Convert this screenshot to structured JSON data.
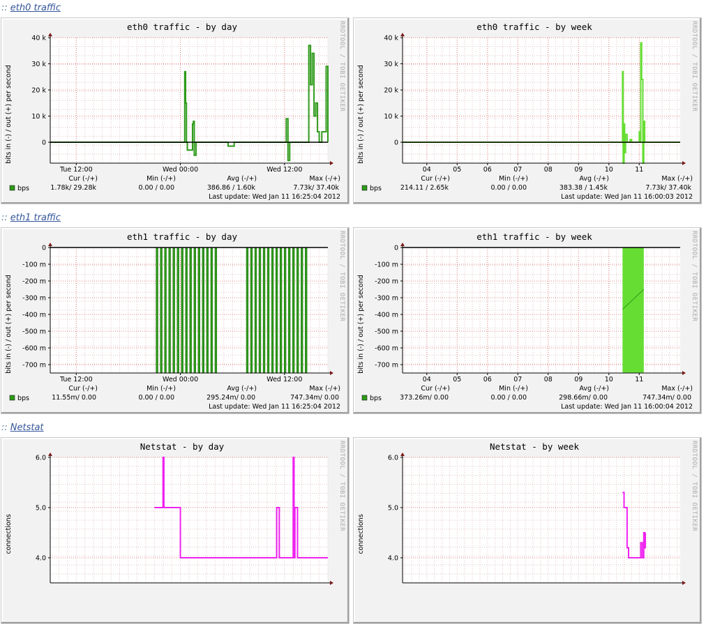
{
  "sections": [
    {
      "prefix": "::",
      "label": "eth0 traffic"
    },
    {
      "prefix": "::",
      "label": "eth1 traffic"
    },
    {
      "prefix": "::",
      "label": "Netstat"
    }
  ],
  "watermark": "RRDTOOL / TOBI OETIKER",
  "chart_data": [
    {
      "type": "line",
      "title": "eth0 traffic - by day",
      "ylabel": "bits in (-) / out (+) per second",
      "ylim": [
        -8000,
        40000
      ],
      "yticks": [
        {
          "v": 40000,
          "label": "40 k"
        },
        {
          "v": 30000,
          "label": "30 k"
        },
        {
          "v": 20000,
          "label": "20 k"
        },
        {
          "v": 10000,
          "label": "10 k"
        },
        {
          "v": 0,
          "label": "0"
        }
      ],
      "xlim": [
        0,
        32
      ],
      "xticks": [
        {
          "v": 3,
          "label": "Tue 12:00"
        },
        {
          "v": 15,
          "label": "Wed 00:00"
        },
        {
          "v": 27,
          "label": "Wed 12:00"
        }
      ],
      "fill": false,
      "color": "#2e9a1a",
      "series": [
        {
          "x": [
            0,
            15.5,
            15.6,
            15.7,
            15.8,
            16.4,
            16.5,
            16.6,
            16.8,
            17.5,
            18.5,
            19.5,
            20.5,
            21.2,
            22,
            23,
            24,
            25,
            25.5,
            25.8,
            27.2,
            27.4,
            27.6,
            28,
            29.8,
            30,
            30.2,
            30.4,
            30.6,
            30.8,
            31,
            31.3,
            31.8,
            32
          ],
          "y": [
            0,
            27000,
            15000,
            0,
            -3000,
            7000,
            8000,
            -5000,
            0,
            0,
            0,
            0,
            -1500,
            0,
            0,
            0,
            0,
            0,
            0,
            0,
            9000,
            -7000,
            0,
            0,
            37000,
            22000,
            34000,
            10000,
            15000,
            4000,
            0,
            4000,
            29000,
            0
          ]
        }
      ],
      "legend": [
        {
          "name": "bps",
          "color": "#2e9a1a"
        }
      ],
      "stats_header": [
        "Cur (-/+)",
        "Min (-/+)",
        "Avg (-/+)",
        "Max (-/+)"
      ],
      "stats": [
        "1.78k/    29.28k",
        "0.00 /     0.00",
        "386.86 /    1.60k",
        "7.73k/    37.40k"
      ],
      "last_update": "Last update: Wed Jan 11 16:25:04 2012"
    },
    {
      "type": "line",
      "title": "eth0 traffic - by week",
      "ylabel": "bits in (-) / out (+) per second",
      "ylim": [
        -8000,
        40000
      ],
      "yticks": [
        {
          "v": 40000,
          "label": "40 k"
        },
        {
          "v": 30000,
          "label": "30 k"
        },
        {
          "v": 20000,
          "label": "20 k"
        },
        {
          "v": 10000,
          "label": "10 k"
        },
        {
          "v": 0,
          "label": "0"
        }
      ],
      "xlim": [
        2.2,
        11.35
      ],
      "xticks": [
        {
          "v": 3,
          "label": "04"
        },
        {
          "v": 4,
          "label": "05"
        },
        {
          "v": 5,
          "label": "06"
        },
        {
          "v": 6,
          "label": "07"
        },
        {
          "v": 7,
          "label": "08"
        },
        {
          "v": 8,
          "label": "09"
        },
        {
          "v": 9,
          "label": "10"
        },
        {
          "v": 10,
          "label": "11"
        }
      ],
      "fill": false,
      "color": "#66dd33",
      "series": [
        {
          "x": [
            2.2,
            9.45,
            9.47,
            9.5,
            9.52,
            9.55,
            9.6,
            9.7,
            9.75,
            9.8,
            9.85,
            9.9,
            9.95,
            10.0,
            10.02,
            10.05,
            10.08,
            10.12,
            10.15,
            10.18,
            11.35
          ],
          "y": [
            0,
            27000,
            -8000,
            7000,
            -4000,
            3000,
            0,
            1000,
            0,
            0,
            0,
            0,
            0,
            4000,
            0,
            38000,
            24000,
            -8000,
            8000,
            0,
            0
          ]
        }
      ],
      "legend": [
        {
          "name": "bps",
          "color": "#2e9a1a"
        }
      ],
      "stats_header": [
        "Cur (-/+)",
        "Min (-/+)",
        "Avg (-/+)",
        "Max (-/+)"
      ],
      "stats": [
        "214.11 /    2.65k",
        "0.00 /     0.00",
        "383.38 /    1.45k",
        "7.73k/    37.40k"
      ],
      "last_update": "Last update: Wed Jan 11 16:00:03 2012"
    },
    {
      "type": "area",
      "title": "eth1 traffic - by day",
      "ylabel": "bits in (-) / out (+) per second",
      "ylim": [
        -750,
        0
      ],
      "yticks": [
        {
          "v": 0,
          "label": "0"
        },
        {
          "v": -100,
          "label": "-100 m"
        },
        {
          "v": -200,
          "label": "-200 m"
        },
        {
          "v": -300,
          "label": "-300 m"
        },
        {
          "v": -400,
          "label": "-400 m"
        },
        {
          "v": -500,
          "label": "-500 m"
        },
        {
          "v": -600,
          "label": "-600 m"
        },
        {
          "v": -700,
          "label": "-700 m"
        }
      ],
      "xlim": [
        0,
        32
      ],
      "xticks": [
        {
          "v": 3,
          "label": "Tue 12:00"
        },
        {
          "v": 15,
          "label": "Wed 00:00"
        },
        {
          "v": 27,
          "label": "Wed 12:00"
        }
      ],
      "fill": true,
      "color": "#2e9a1a",
      "bands": [
        [
          12.2,
          19.2
        ],
        [
          22.6,
          29.8
        ]
      ],
      "band_min": -747.34,
      "legend": [
        {
          "name": "bps",
          "color": "#2e9a1a"
        }
      ],
      "stats_header": [
        "Cur (-/+)",
        "Min (-/+)",
        "Avg (-/+)",
        "Max (-/+)"
      ],
      "stats": [
        "11.55m/     0.00",
        "0.00 /     0.00",
        "295.24m/     0.00",
        "747.34m/     0.00"
      ],
      "last_update": "Last update: Wed Jan 11 16:25:04 2012"
    },
    {
      "type": "area",
      "title": "eth1 traffic - by week",
      "ylabel": "bits in (-) / out (+) per second",
      "ylim": [
        -750,
        0
      ],
      "yticks": [
        {
          "v": 0,
          "label": "0"
        },
        {
          "v": -100,
          "label": "-100 m"
        },
        {
          "v": -200,
          "label": "-200 m"
        },
        {
          "v": -300,
          "label": "-300 m"
        },
        {
          "v": -400,
          "label": "-400 m"
        },
        {
          "v": -500,
          "label": "-500 m"
        },
        {
          "v": -600,
          "label": "-600 m"
        },
        {
          "v": -700,
          "label": "-700 m"
        }
      ],
      "xlim": [
        2.2,
        11.35
      ],
      "xticks": [
        {
          "v": 3,
          "label": "04"
        },
        {
          "v": 4,
          "label": "05"
        },
        {
          "v": 5,
          "label": "06"
        },
        {
          "v": 6,
          "label": "07"
        },
        {
          "v": 7,
          "label": "08"
        },
        {
          "v": 8,
          "label": "09"
        },
        {
          "v": 9,
          "label": "10"
        },
        {
          "v": 10,
          "label": "11"
        }
      ],
      "fill": true,
      "color": "#66dd33",
      "bands": [
        [
          9.45,
          10.15
        ]
      ],
      "band_min": -747.34,
      "line": {
        "x": [
          9.45,
          10.15
        ],
        "y": [
          -370,
          -250
        ]
      },
      "legend": [
        {
          "name": "bps",
          "color": "#2e9a1a"
        }
      ],
      "stats_header": [
        "Cur (-/+)",
        "Min (-/+)",
        "Avg (-/+)",
        "Max (-/+)"
      ],
      "stats": [
        "373.26m/     0.00",
        "0.00 /     0.00",
        "298.66m/     0.00",
        "747.34m/     0.00"
      ],
      "last_update": "Last update: Wed Jan 11 16:00:04 2012"
    },
    {
      "type": "line",
      "title": "Netstat - by day",
      "ylabel": "connections",
      "ylim": [
        3.5,
        6.0
      ],
      "yticks": [
        {
          "v": 6.0,
          "label": "6.0"
        },
        {
          "v": 5.0,
          "label": "5.0"
        },
        {
          "v": 4.0,
          "label": "4.0"
        }
      ],
      "xlim": [
        0,
        32
      ],
      "xticks": [],
      "fill": false,
      "color": "#ee22ee",
      "series": [
        {
          "x": [
            12.0,
            12.9,
            13.0,
            13.1,
            14.8,
            15.0,
            26.0,
            26.1,
            26.3,
            26.4,
            27.9,
            28.0,
            28.1,
            28.2,
            28.4,
            28.5,
            32
          ],
          "y": [
            5.0,
            5.0,
            6.0,
            5.0,
            5.0,
            4.0,
            4.0,
            5.0,
            5.0,
            4.0,
            4.0,
            6.0,
            4.0,
            5.0,
            5.0,
            4.0,
            4.0
          ]
        }
      ]
    },
    {
      "type": "line",
      "title": "Netstat - by week",
      "ylabel": "connections",
      "ylim": [
        3.5,
        6.0
      ],
      "yticks": [
        {
          "v": 6.0,
          "label": "6.0"
        },
        {
          "v": 5.0,
          "label": "5.0"
        },
        {
          "v": 4.0,
          "label": "4.0"
        }
      ],
      "xlim": [
        2.2,
        11.35
      ],
      "xticks": [],
      "fill": false,
      "color": "#ee22ee",
      "series": [
        {
          "x": [
            9.45,
            9.5,
            9.55,
            9.6,
            9.65,
            9.7,
            10.0,
            10.05,
            10.1,
            10.15,
            10.18,
            10.2
          ],
          "y": [
            5.3,
            5.0,
            5.0,
            4.2,
            4.0,
            4.0,
            4.0,
            4.3,
            4.0,
            4.5,
            4.2,
            4.5
          ]
        }
      ]
    }
  ]
}
